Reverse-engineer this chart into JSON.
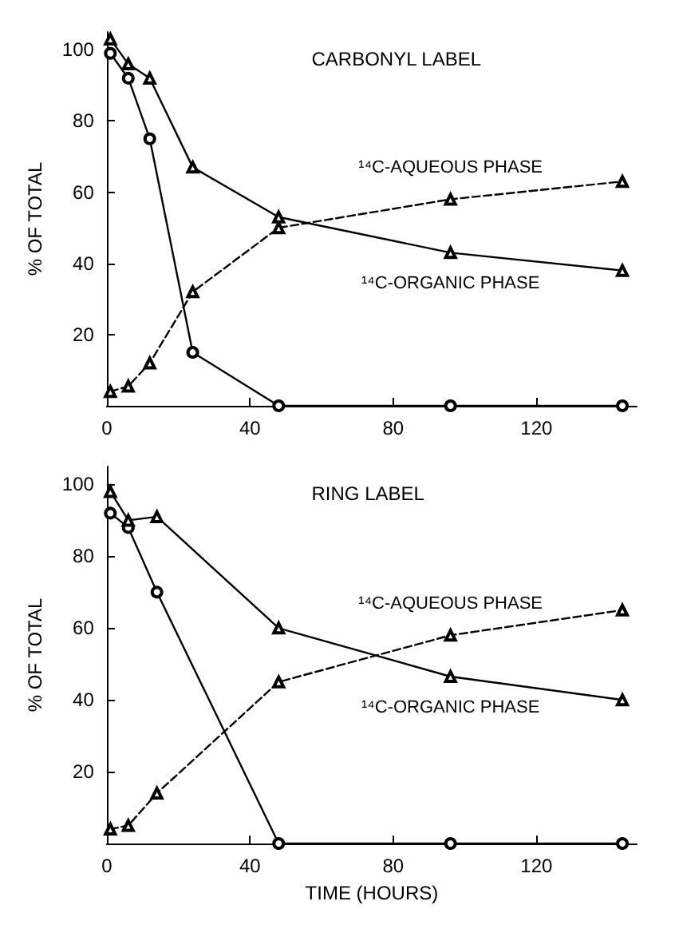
{
  "chart_data": [
    {
      "type": "line",
      "title": "CARBONYL LABEL",
      "ylabel": "% OF TOTAL",
      "x": [
        1,
        6,
        12,
        24,
        48,
        96,
        144
      ],
      "xlim": [
        0,
        148
      ],
      "xticks": [
        0,
        40,
        80,
        120
      ],
      "ylim": [
        0,
        105
      ],
      "yticks": [
        20,
        40,
        60,
        80,
        100
      ],
      "grid": false,
      "legend": false,
      "series": [
        {
          "color": "#000000",
          "marker": "circle",
          "line_style": "solid",
          "values": [
            99,
            92,
            75,
            15,
            0,
            0,
            0
          ]
        },
        {
          "name": "¹⁴C-AQUEOUS PHASE",
          "color": "#000000",
          "marker": "triangle",
          "line_style": "dashed",
          "values": [
            4,
            5.5,
            12,
            32,
            50,
            58,
            63
          ]
        },
        {
          "name": "¹⁴C-ORGANIC PHASE",
          "color": "#000000",
          "marker": "triangle",
          "line_style": "solid",
          "values": [
            103,
            96,
            92,
            67,
            53,
            43,
            38
          ]
        }
      ]
    },
    {
      "type": "line",
      "title": "RING LABEL",
      "xlabel": "TIME (HOURS)",
      "ylabel": "% OF TOTAL",
      "x": [
        1,
        6,
        14,
        48,
        96,
        144
      ],
      "xlim": [
        0,
        148
      ],
      "xticks": [
        0,
        40,
        80,
        120
      ],
      "ylim": [
        0,
        105
      ],
      "yticks": [
        20,
        40,
        60,
        80,
        100
      ],
      "grid": false,
      "legend": false,
      "series": [
        {
          "color": "#000000",
          "marker": "circle",
          "line_style": "solid",
          "values": [
            92,
            88,
            70,
            0,
            0,
            0
          ]
        },
        {
          "name": "¹⁴C-AQUEOUS PHASE",
          "color": "#000000",
          "marker": "triangle",
          "line_style": "dashed",
          "values": [
            4,
            5,
            14,
            45,
            58,
            65
          ]
        },
        {
          "name": "¹⁴C-ORGANIC PHASE",
          "color": "#000000",
          "marker": "triangle",
          "line_style": "solid",
          "values": [
            98,
            90,
            91,
            60,
            46.5,
            40
          ]
        }
      ]
    }
  ]
}
